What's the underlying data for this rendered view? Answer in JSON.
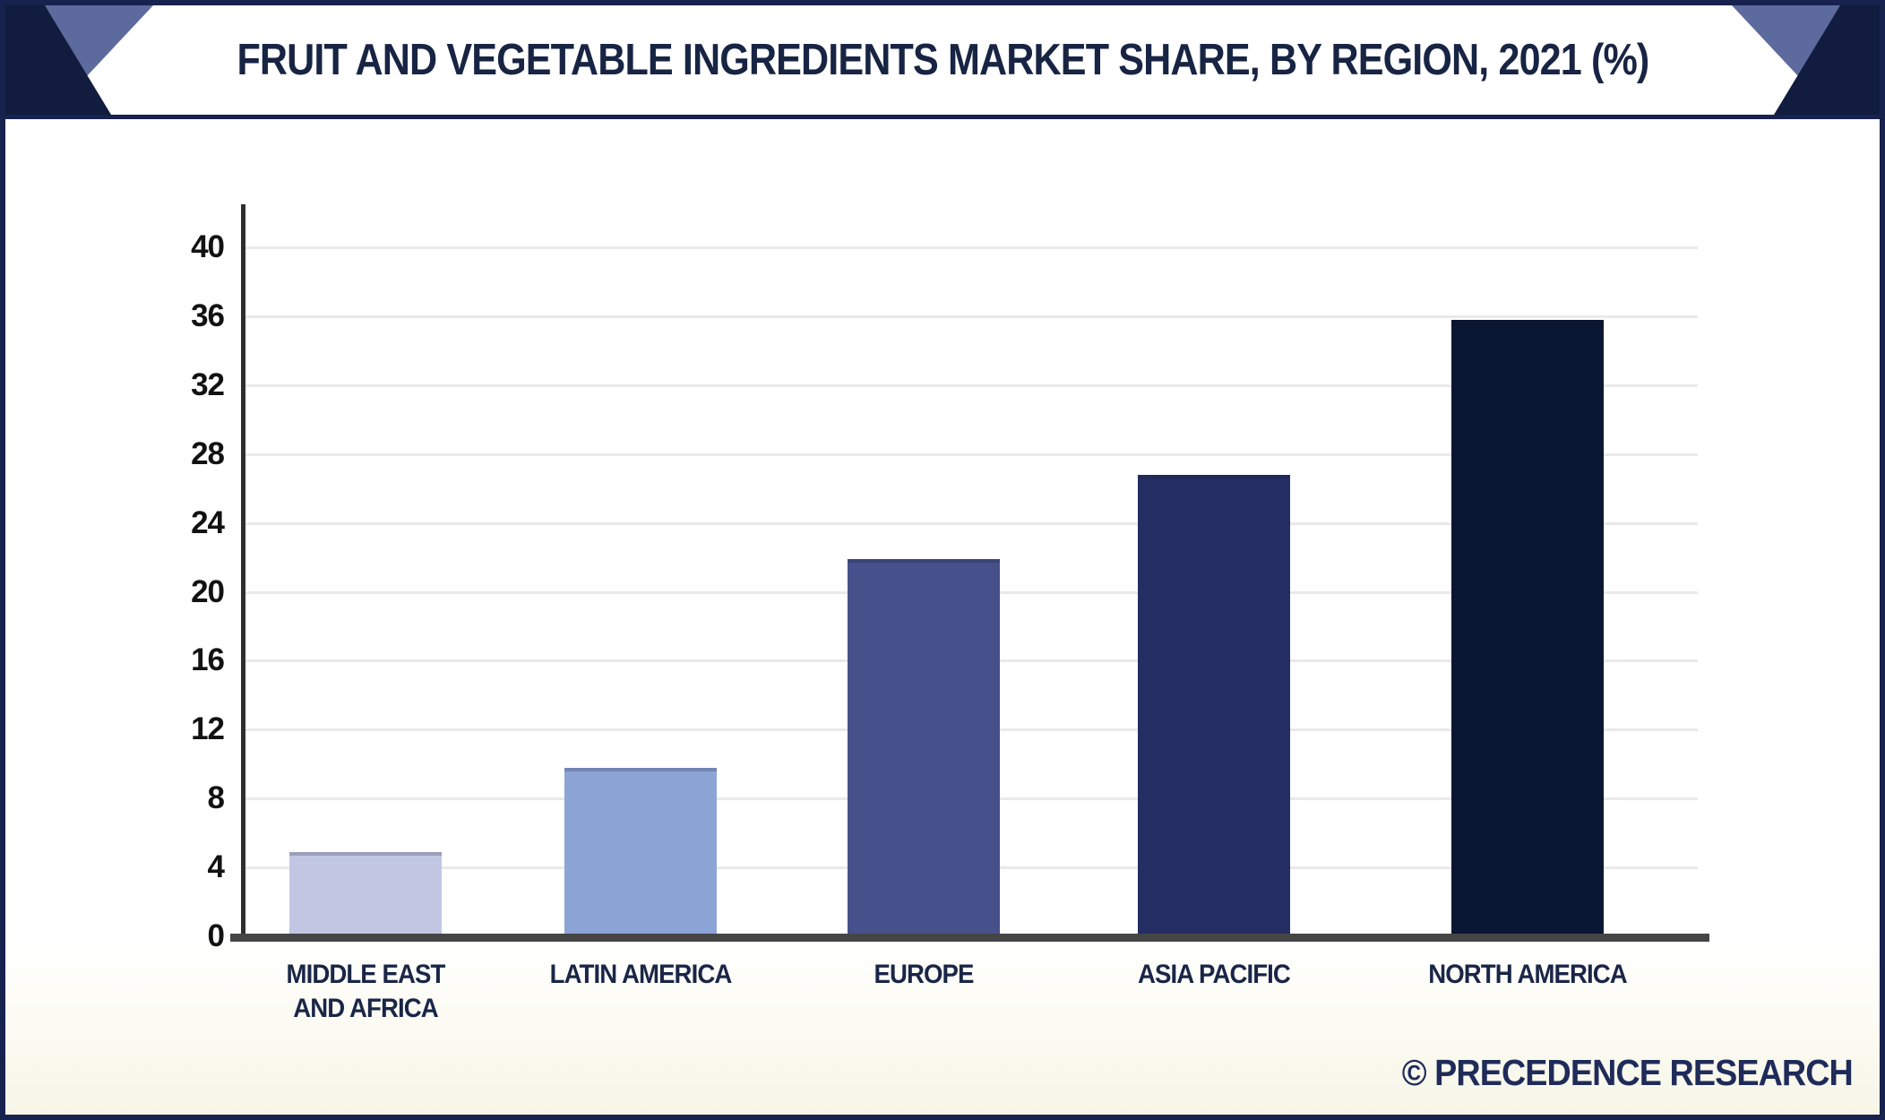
{
  "header": {
    "title": "FRUIT AND VEGETABLE INGREDIENTS MARKET SHARE, BY REGION, 2021 (%)"
  },
  "footer": {
    "watermark": "© PRECEDENCE RESEARCH"
  },
  "colors": {
    "frame_border": "#18224e",
    "corner_dark": "#111c3e",
    "corner_slate": "#5d6a9e",
    "title_text": "#182443",
    "axis_line": "#2e2e2e",
    "baseline": "#454545",
    "gridline": "#e9e9e9",
    "tick_text": "#121212",
    "category_text": "#1a2647",
    "watermark_text": "#1f2b59"
  },
  "chart_data": {
    "type": "bar",
    "title": "Fruit and Vegetable Ingredients Market Share, By Region, 2021 (%)",
    "categories": [
      "MIDDLE EAST AND AFRICA",
      "LATIN AMERICA",
      "EUROPE",
      "ASIA PACIFIC",
      "NORTH AMERICA"
    ],
    "values": [
      4.9,
      9.8,
      21.9,
      26.8,
      35.8
    ],
    "bar_colors": [
      "#c1c7e2",
      "#8da4d6",
      "#46508a",
      "#242e63",
      "#0a1733"
    ],
    "xlabel": "",
    "ylabel": "",
    "ylim": [
      0,
      40
    ],
    "ytick_step": 4,
    "yticks": [
      0,
      4,
      8,
      12,
      16,
      20,
      24,
      28,
      32,
      36,
      40
    ],
    "grid": "horizontal-only",
    "legend": "none",
    "unit": "%"
  }
}
